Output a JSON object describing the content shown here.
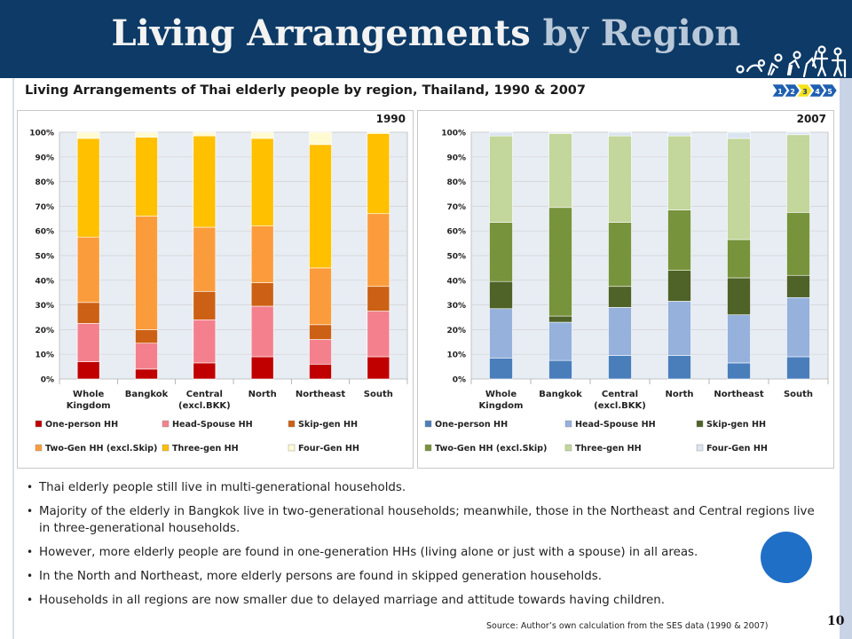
{
  "header": {
    "title_part1": "Living Arrangements",
    "title_part2": "by Region"
  },
  "subtitle": "Living Arrangements of Thai elderly people by region, Thailand, 1990 & 2007",
  "steps": [
    "1",
    "2",
    "3",
    "4",
    "5"
  ],
  "chart_data": [
    {
      "type": "bar",
      "stacked": true,
      "title": "1990",
      "categories": [
        [
          "Whole",
          "Kingdom"
        ],
        [
          "Bangkok"
        ],
        [
          "Central",
          "(excl.BKK)"
        ],
        [
          "North"
        ],
        [
          "Northeast"
        ],
        [
          "South"
        ]
      ],
      "ylim": [
        0,
        100
      ],
      "yticks": [
        "0%",
        "10%",
        "20%",
        "30%",
        "40%",
        "50%",
        "60%",
        "70%",
        "80%",
        "90%",
        "100%"
      ],
      "legend_position": "bottom",
      "series": [
        {
          "name": "One-person HH",
          "color": "#c00000",
          "values": [
            7,
            4,
            6.5,
            9,
            6,
            9
          ]
        },
        {
          "name": "Head-Spouse HH",
          "color": "#f4808e",
          "values": [
            15.5,
            10.5,
            17.5,
            20.5,
            10,
            18.5
          ]
        },
        {
          "name": "Skip-gen HH",
          "color": "#cc6014",
          "values": [
            8.5,
            5.5,
            11.5,
            9.5,
            6,
            10
          ]
        },
        {
          "name": "Two-Gen HH (excl.Skip)",
          "color": "#fb9c3c",
          "values": [
            26.5,
            46,
            26,
            23,
            23,
            29.5
          ]
        },
        {
          "name": "Three-gen HH",
          "color": "#ffc000",
          "values": [
            40,
            32,
            37,
            35.5,
            50,
            32.5
          ]
        },
        {
          "name": "Four-Gen HH",
          "color": "#fefad2",
          "values": [
            2.5,
            2,
            1.5,
            2.5,
            5,
            0.5
          ]
        }
      ]
    },
    {
      "type": "bar",
      "stacked": true,
      "title": "2007",
      "categories": [
        [
          "Whole",
          "Kingdom"
        ],
        [
          "Bangkok"
        ],
        [
          "Central",
          "(excl.BKK)"
        ],
        [
          "North"
        ],
        [
          "Northeast"
        ],
        [
          "South"
        ]
      ],
      "ylim": [
        0,
        100
      ],
      "yticks": [
        "0%",
        "10%",
        "20%",
        "30%",
        "40%",
        "50%",
        "60%",
        "70%",
        "80%",
        "90%",
        "100%"
      ],
      "legend_position": "bottom",
      "series": [
        {
          "name": "One-person HH",
          "color": "#4a7ebb",
          "values": [
            8.5,
            7.5,
            9.5,
            9.5,
            6.5,
            9
          ]
        },
        {
          "name": "Head-Spouse HH",
          "color": "#95b1dc",
          "values": [
            20,
            15.5,
            19.5,
            22,
            19.5,
            24
          ]
        },
        {
          "name": "Skip-gen HH",
          "color": "#4f6228",
          "values": [
            11,
            2.5,
            8.5,
            12.5,
            15,
            9
          ]
        },
        {
          "name": "Two-Gen HH (excl.Skip)",
          "color": "#77933c",
          "values": [
            24,
            44,
            26,
            24.5,
            15.5,
            25.5
          ]
        },
        {
          "name": "Three-gen HH",
          "color": "#c3d69b",
          "values": [
            35,
            30,
            35,
            30,
            41,
            31.5
          ]
        },
        {
          "name": "Four-Gen HH",
          "color": "#dbe5f1",
          "values": [
            1.5,
            0.5,
            1.5,
            1.5,
            2.5,
            1
          ]
        }
      ]
    }
  ],
  "bullets": [
    "Thai elderly people still live in multi-generational households.",
    "Majority of the elderly in Bangkok live in two-generational households; meanwhile, those in the Northeast and Central regions live in three-generational households.",
    "However, more elderly people are found in one-generation HHs (living alone or just with a spouse) in all areas.",
    "In the North and Northeast, more elderly persons are found in skipped generation households.",
    "Households in all regions are now smaller due to delayed marriage and attitude towards having children."
  ],
  "source": "Source: Author’s own calculation from the SES data (1990 & 2007)",
  "page_number": "10"
}
